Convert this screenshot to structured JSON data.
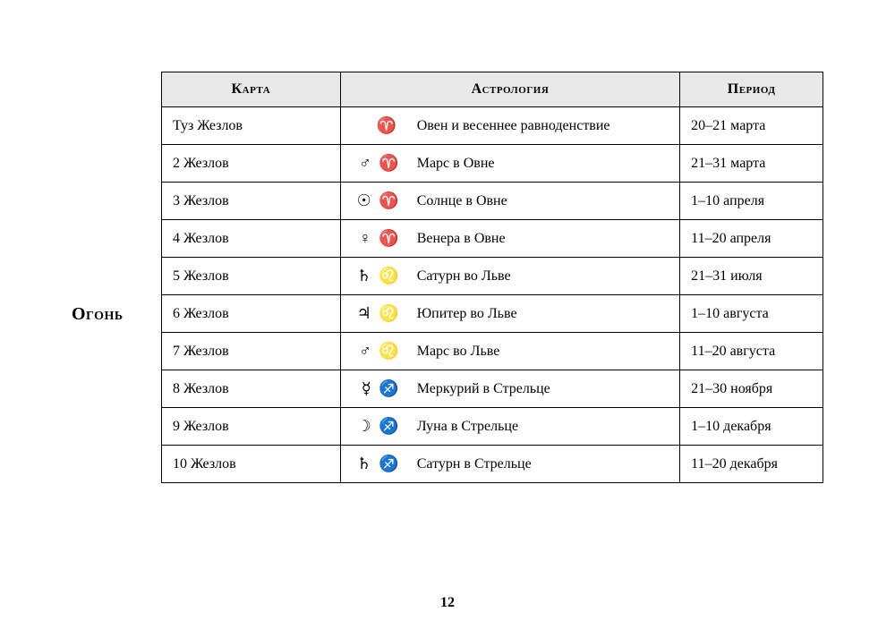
{
  "element_label": "Огонь",
  "page_number": "12",
  "headers": {
    "card": "Карта",
    "astrology": "Астрология",
    "period": "Период"
  },
  "rows": [
    {
      "card": "Туз Жезлов",
      "planet": "",
      "sign": "♈",
      "desc": "Овен и весеннее равноденствие",
      "period": "20–21 марта"
    },
    {
      "card": "2 Жезлов",
      "planet": "♂",
      "sign": "♈",
      "desc": "Марс в Овне",
      "period": "21–31 марта"
    },
    {
      "card": "3 Жезлов",
      "planet": "☉",
      "sign": "♈",
      "desc": "Солнце в Овне",
      "period": "1–10 апреля"
    },
    {
      "card": "4 Жезлов",
      "planet": "♀",
      "sign": "♈",
      "desc": "Венера в Овне",
      "period": "11–20 апреля"
    },
    {
      "card": "5 Жезлов",
      "planet": "♄",
      "sign": "♌",
      "desc": "Сатурн во Льве",
      "period": "21–31 июля"
    },
    {
      "card": "6 Жезлов",
      "planet": "♃",
      "sign": "♌",
      "desc": "Юпитер во Льве",
      "period": "1–10 августа"
    },
    {
      "card": "7 Жезлов",
      "planet": "♂",
      "sign": "♌",
      "desc": "Марс во Льве",
      "period": "11–20 августа"
    },
    {
      "card": "8 Жезлов",
      "planet": "☿",
      "sign": "♐",
      "desc": "Меркурий в Стрельце",
      "period": "21–30 ноября"
    },
    {
      "card": "9 Жезлов",
      "planet": "☽",
      "sign": "♐",
      "desc": "Луна в Стрельце",
      "period": "1–10 декабря"
    },
    {
      "card": "10 Жезлов",
      "planet": "♄",
      "sign": "♐",
      "desc": "Сатурн в Стрельце",
      "period": "11–20 декабря"
    }
  ]
}
